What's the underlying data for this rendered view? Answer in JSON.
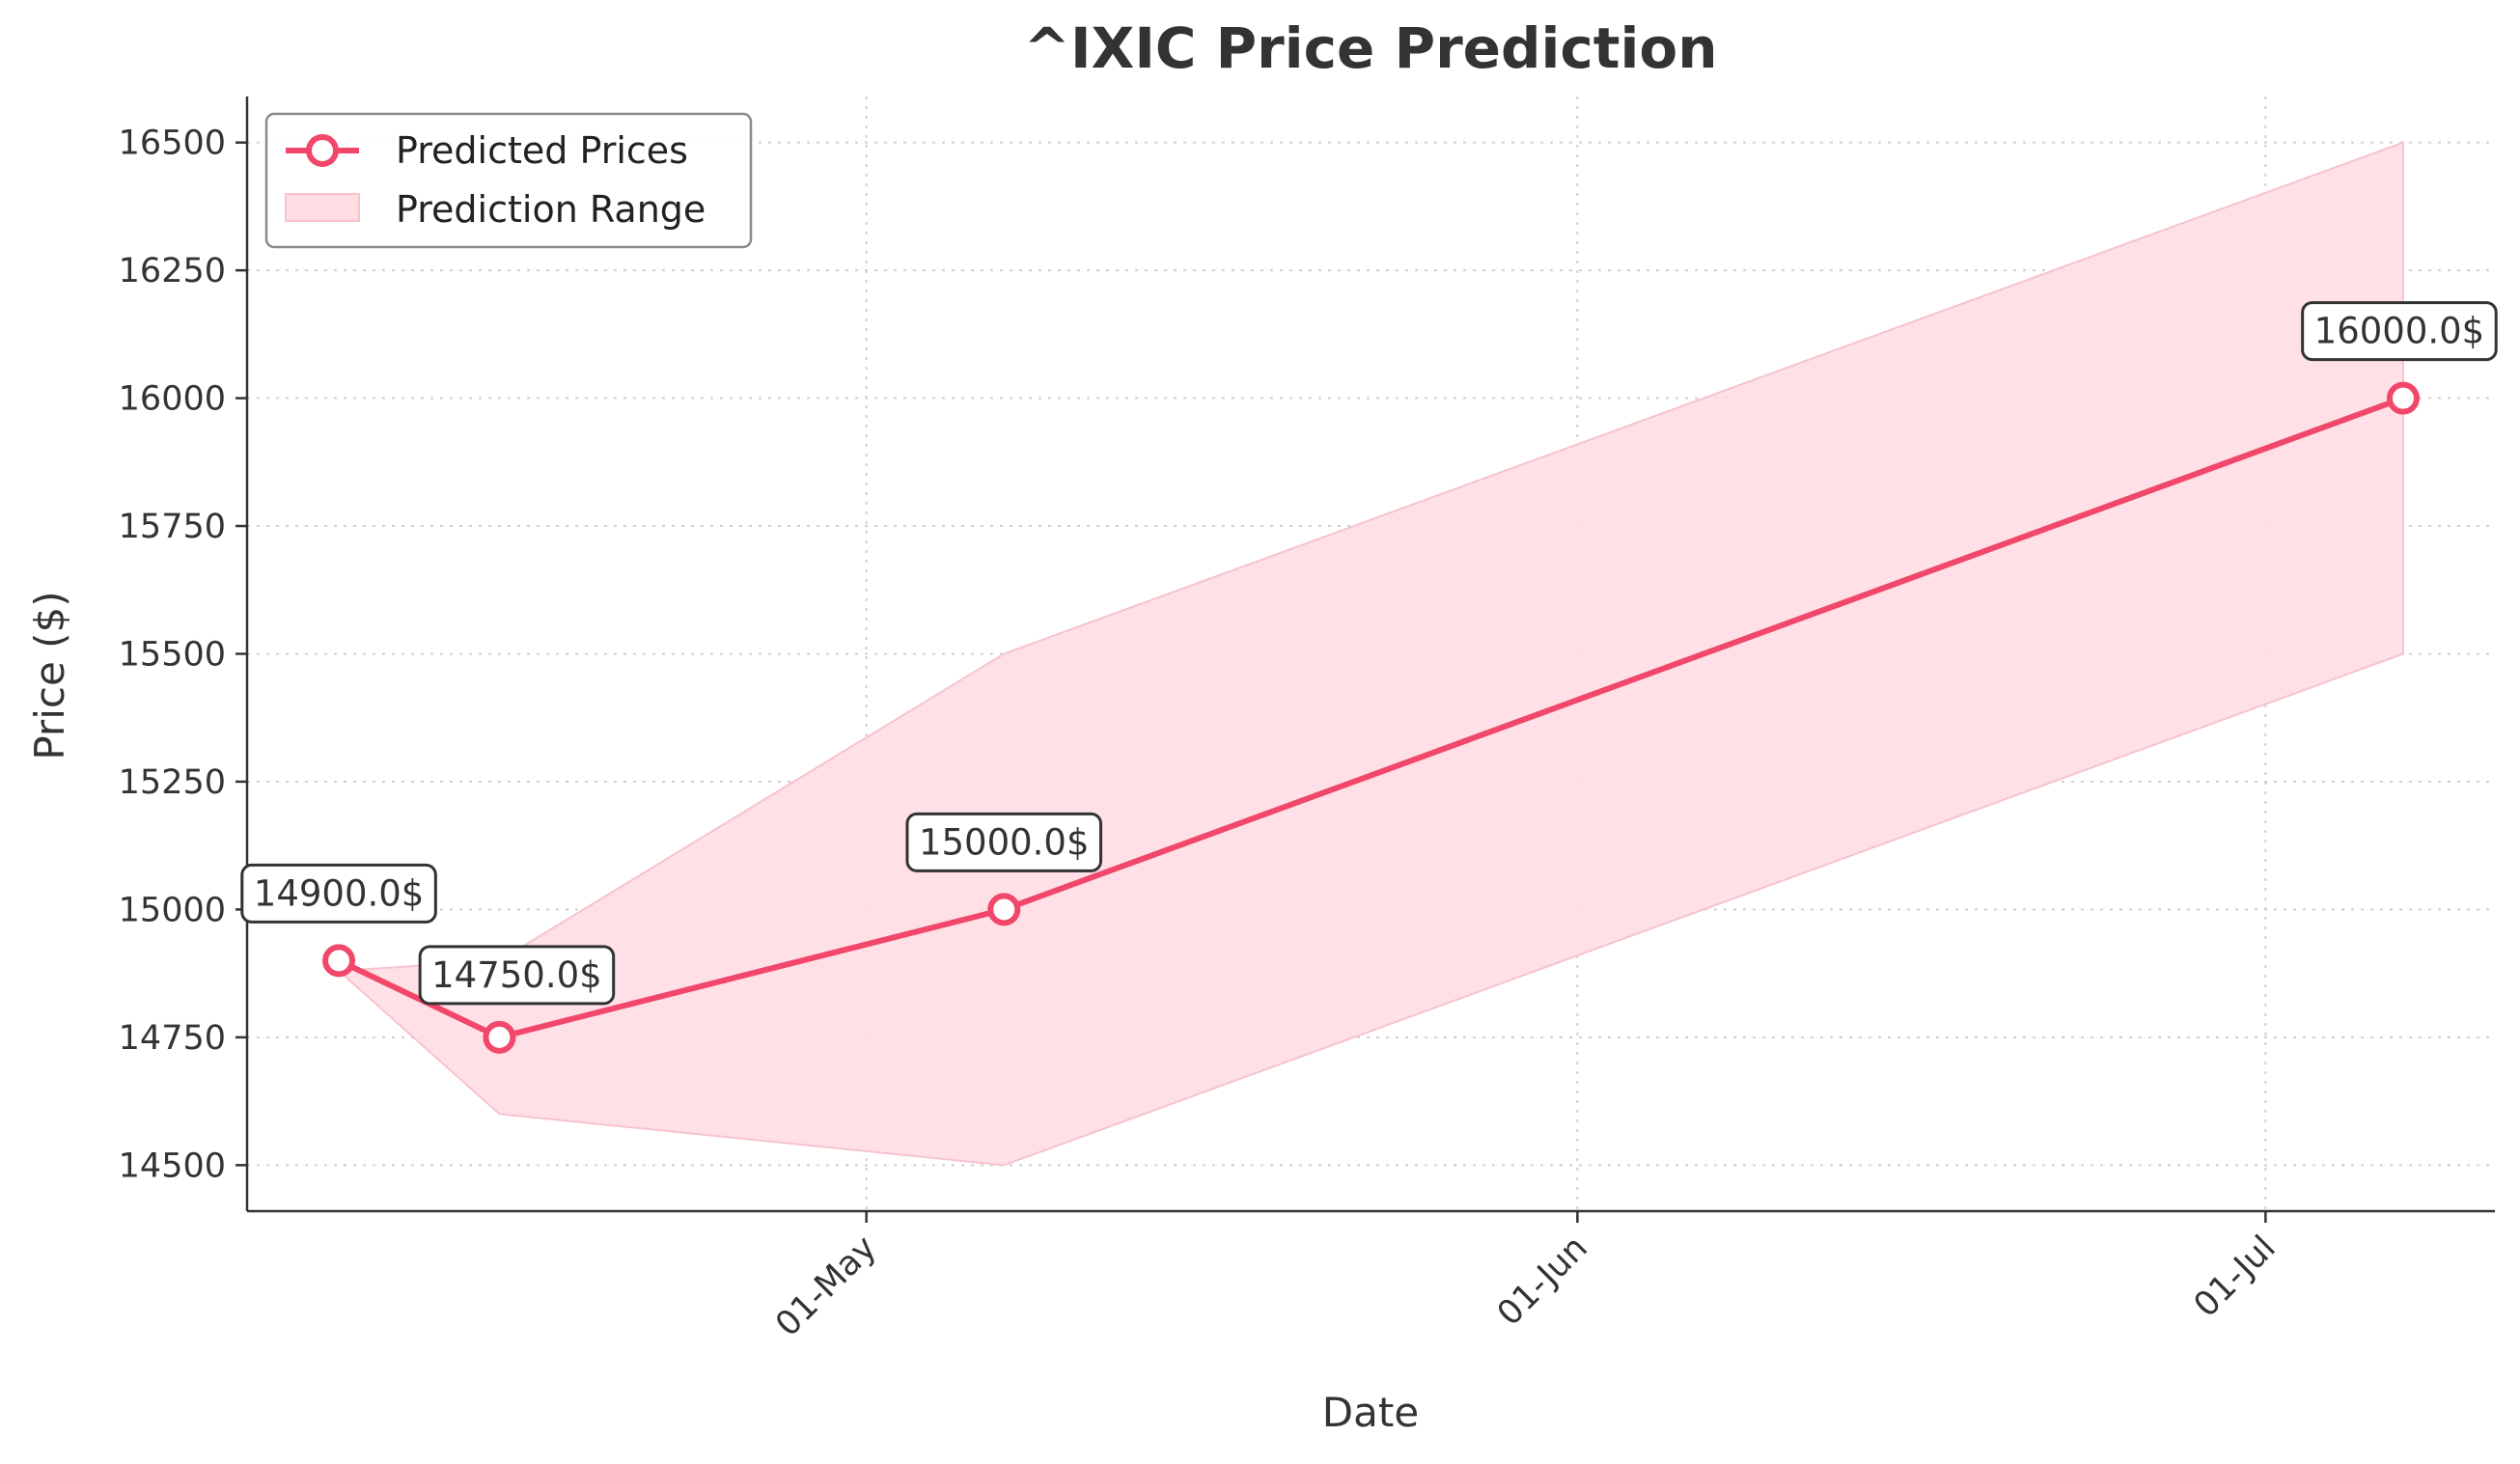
{
  "chart_data": {
    "type": "line",
    "title": "^IXIC Price Prediction",
    "xlabel": "Date",
    "ylabel": "Price ($)",
    "x_ticks": [
      {
        "date": "2024-05-01",
        "label": "01-May"
      },
      {
        "date": "2024-06-01",
        "label": "01-Jun"
      },
      {
        "date": "2024-07-01",
        "label": "01-Jul"
      }
    ],
    "y_ticks": [
      14500,
      14750,
      15000,
      15250,
      15500,
      15750,
      16000,
      16250,
      16500
    ],
    "xlim": [
      "2024-04-04",
      "2024-07-11"
    ],
    "ylim": [
      14410,
      16590
    ],
    "grid": true,
    "legend_position": "top-left",
    "series": [
      {
        "name": "Predicted Prices",
        "color": "#f0476a",
        "points": [
          {
            "date": "2024-04-08",
            "value": 14900,
            "label": "14900.0$"
          },
          {
            "date": "2024-04-15",
            "value": 14750,
            "label": "14750.0$"
          },
          {
            "date": "2024-05-07",
            "value": 15000,
            "label": "15000.0$"
          },
          {
            "date": "2024-07-07",
            "value": 16000,
            "label": "16000.0$"
          }
        ]
      }
    ],
    "range": {
      "name": "Prediction Range",
      "color": "#ffdde3",
      "points": [
        {
          "date": "2024-04-08",
          "low": 14880,
          "high": 14880
        },
        {
          "date": "2024-04-15",
          "low": 14600,
          "high": 14900
        },
        {
          "date": "2024-05-07",
          "low": 14500,
          "high": 15500
        },
        {
          "date": "2024-07-07",
          "low": 15500,
          "high": 16500
        }
      ]
    }
  }
}
